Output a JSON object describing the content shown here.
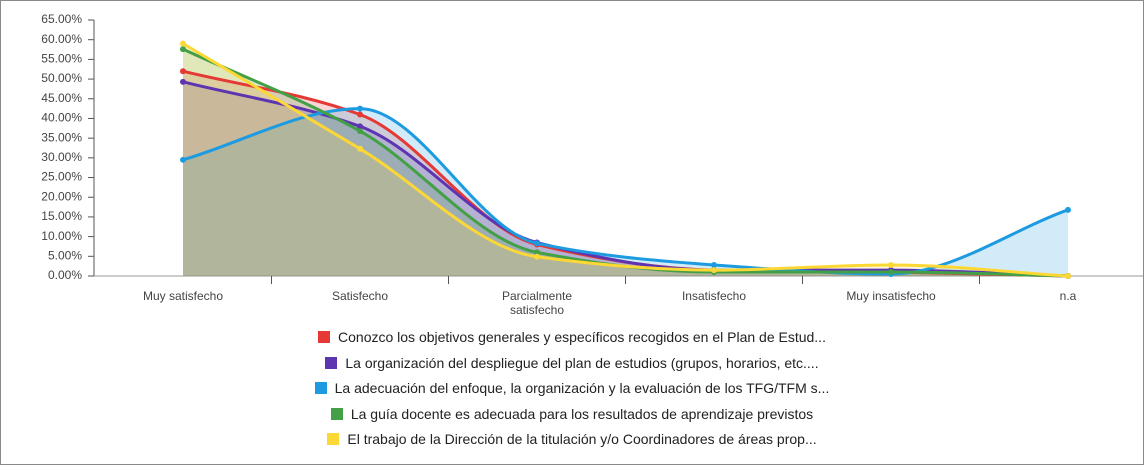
{
  "chart_data": {
    "type": "area",
    "categories": [
      "Muy satisfecho",
      "Satisfecho",
      "Parcialmente satisfecho",
      "Insatisfecho",
      "Muy insatisfecho",
      "n.a"
    ],
    "series": [
      {
        "name": "Conozco los objetivos generales y específicos recogidos en el Plan de Estud...",
        "color": "#e53935",
        "values": [
          52,
          41,
          8,
          1.5,
          1,
          0
        ]
      },
      {
        "name": "La organización del despliegue del plan de estudios (grupos, horarios, etc....",
        "color": "#5e35b1",
        "values": [
          49.3,
          38,
          8.5,
          1.5,
          1.5,
          0
        ]
      },
      {
        "name": "La adecuación del enfoque, la organización y la evaluación de los TFG/TFM s...",
        "color": "#1e9be0",
        "values": [
          29.5,
          42.5,
          8.3,
          2.8,
          0.5,
          16.8
        ]
      },
      {
        "name": "La guía docente es adecuada para los resultados de aprendizaje previstos",
        "color": "#43a047",
        "values": [
          57.6,
          36.8,
          6,
          1,
          1,
          0
        ]
      },
      {
        "name": "El trabajo de la Dirección de la titulación y/o Coordinadores de áreas prop...",
        "color": "#fdd835",
        "values": [
          59,
          32.3,
          4.9,
          1.5,
          2.8,
          0
        ]
      }
    ],
    "ylim": [
      0,
      65
    ],
    "yticks": [
      {
        "value": 0,
        "label": "0.00%"
      },
      {
        "value": 5,
        "label": "5.00%"
      },
      {
        "value": 10,
        "label": "10.00%"
      },
      {
        "value": 15,
        "label": "15.00%"
      },
      {
        "value": 20,
        "label": "20.00%"
      },
      {
        "value": 25,
        "label": "25.00%"
      },
      {
        "value": 30,
        "label": "30.00%"
      },
      {
        "value": 35,
        "label": "35.00%"
      },
      {
        "value": 40,
        "label": "40.00%"
      },
      {
        "value": 45,
        "label": "45.00%"
      },
      {
        "value": 50,
        "label": "50.00%"
      },
      {
        "value": 55,
        "label": "55.00%"
      },
      {
        "value": 60,
        "label": "60.00%"
      },
      {
        "value": 65,
        "label": "65.00%"
      }
    ],
    "legend": "bottom"
  }
}
